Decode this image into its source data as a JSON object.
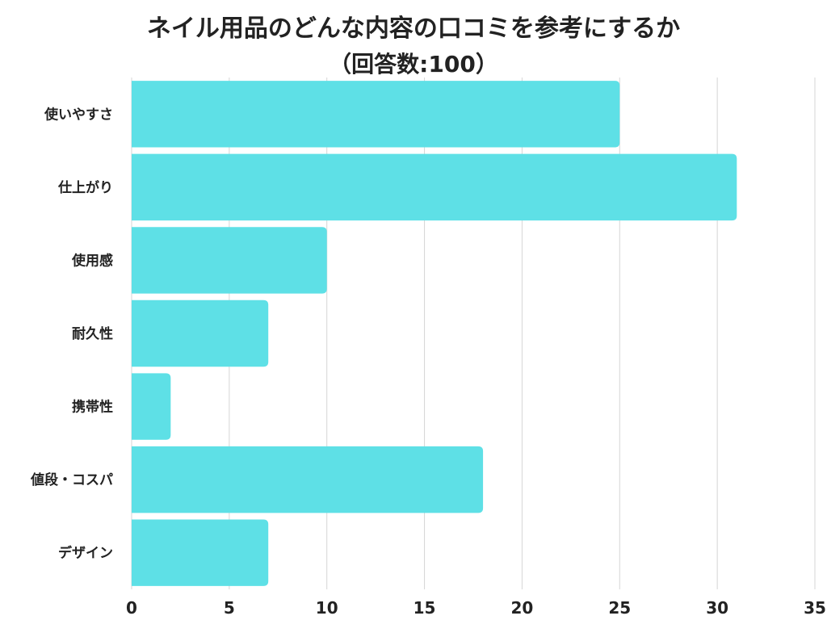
{
  "chart_data": {
    "type": "bar",
    "orientation": "horizontal",
    "title": "ネイル用品のどんな内容の口コミを参考にするか",
    "subtitle": "（回答数:100）",
    "categories": [
      "使いやすさ",
      "仕上がり",
      "使用感",
      "耐久性",
      "携帯性",
      "値段・コスパ",
      "デザイン"
    ],
    "values": [
      25,
      31,
      10,
      7,
      2,
      18,
      7
    ],
    "xlim": [
      0,
      35
    ],
    "xticks": [
      0,
      5,
      10,
      15,
      20,
      25,
      30,
      35
    ],
    "grid": true,
    "bar_color": "#5ee0e6"
  }
}
